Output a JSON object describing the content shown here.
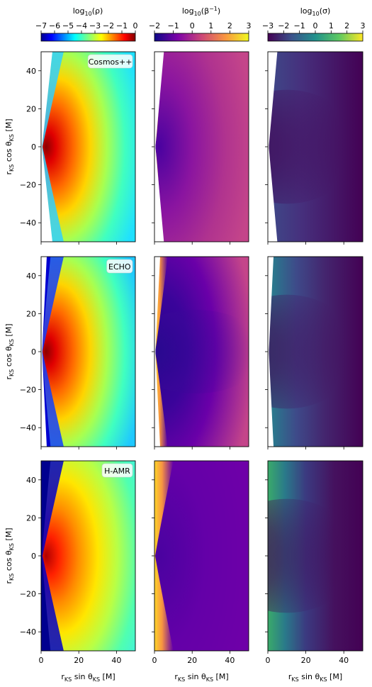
{
  "chart_data": {
    "type": "heatmap",
    "layout": "3 rows x 3 columns of field maps",
    "columns": [
      {
        "quantity": "rho",
        "colorbar_label": "log10(ρ)",
        "colormap": "jet",
        "range": [
          -7,
          0
        ],
        "ticks": [
          -7,
          -6,
          -5,
          -4,
          -3,
          -2,
          -1,
          0
        ]
      },
      {
        "quantity": "beta_inv",
        "colorbar_label": "log10(β⁻¹)",
        "colormap": "plasma",
        "range": [
          -2,
          3
        ],
        "ticks": [
          -2,
          -1,
          0,
          1,
          2,
          3
        ]
      },
      {
        "quantity": "sigma",
        "colorbar_label": "log10(σ)",
        "colormap": "viridis",
        "range": [
          -3,
          3
        ],
        "ticks": [
          -3,
          -2,
          -1,
          0,
          1,
          2,
          3
        ]
      }
    ],
    "rows": [
      {
        "code": "Cosmos++"
      },
      {
        "code": "ECHO"
      },
      {
        "code": "H-AMR"
      }
    ],
    "xlabel": "rKS sin θKS [M]",
    "ylabel": "rKS cos θKS [M]",
    "xlim": [
      0,
      50
    ],
    "ylim": [
      -50,
      50
    ],
    "xticks": [
      0,
      20,
      40
    ],
    "yticks": [
      -40,
      -20,
      0,
      20,
      40
    ],
    "grid": false
  },
  "labels": {
    "cb_rho_prefix": "log",
    "cb_rho_sub": "10",
    "cb_rho_suffix": "(ρ)",
    "cb_beta_prefix": "log",
    "cb_beta_sub": "10",
    "cb_beta_suffix": "(β",
    "cb_beta_sup": "−1",
    "cb_beta_close": ")",
    "cb_sigma_prefix": "log",
    "cb_sigma_sub": "10",
    "cb_sigma_suffix": "(σ)",
    "xlabel_r": "r",
    "xlabel_sub1": "KS",
    "xlabel_mid": " sin θ",
    "xlabel_sub2": "KS",
    "xlabel_unit": " [M]",
    "ylabel_r": "r",
    "ylabel_sub1": "KS",
    "ylabel_mid": " cos θ",
    "ylabel_sub2": "KS",
    "ylabel_unit": " [M]",
    "xtick_labels": [
      "0",
      "20",
      "40"
    ],
    "ytick_labels": [
      "40",
      "20",
      "0",
      "−20",
      "−40"
    ],
    "rho_tick_labels": [
      "−7",
      "−6",
      "−5",
      "−4",
      "−3",
      "−2",
      "−1",
      "0"
    ],
    "beta_tick_labels": [
      "−2",
      "−1",
      "0",
      "1",
      "2",
      "3"
    ],
    "sigma_tick_labels": [
      "−3",
      "−2",
      "−1",
      "0",
      "1",
      "2",
      "3"
    ],
    "row_tags": [
      "Cosmos++",
      "ECHO",
      "H-AMR"
    ]
  }
}
